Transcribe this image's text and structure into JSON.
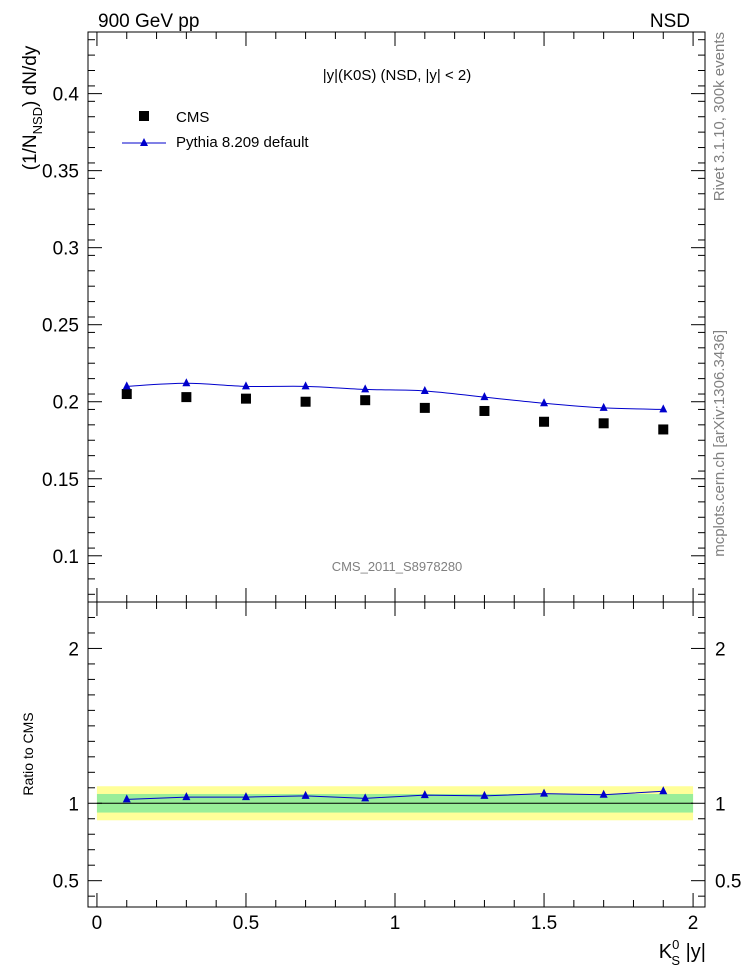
{
  "header": {
    "left": "900 GeV pp",
    "right": "NSD"
  },
  "side_text": {
    "rivet": "Rivet 3.1.10,  300k events",
    "mcplots": "mcplots.cern.ch [arXiv:1306.3436]"
  },
  "watermark": "CMS_2011_S8978280",
  "colors": {
    "mc": "#0000cc",
    "data": "#000000",
    "band_inner": "#99ee99",
    "band_outer": "#ffff99"
  },
  "chart_data": [
    {
      "type": "scatter",
      "title": "|y|(K0S) (NSD, |y| < 2)",
      "ylabel": {
        "main": "(1/N",
        "sub": "NSD",
        "tail": ") dN/dy"
      },
      "xlim": [
        -0.03,
        2.04
      ],
      "ylim": [
        0.07,
        0.44
      ],
      "yticks": [
        0.1,
        0.15,
        0.2,
        0.25,
        0.3,
        0.35,
        0.4
      ],
      "ytick_labels": [
        "0.1",
        "0.15",
        "0.2",
        "0.25",
        "0.3",
        "0.35",
        "0.4"
      ],
      "legend": {
        "position": "top-left",
        "entries": [
          "CMS",
          "Pythia 8.209 default"
        ]
      },
      "x": [
        0.1,
        0.3,
        0.5,
        0.7,
        0.9,
        1.1,
        1.3,
        1.5,
        1.7,
        1.9
      ],
      "series": [
        {
          "name": "CMS",
          "marker": "square",
          "values": [
            0.205,
            0.203,
            0.202,
            0.2,
            0.201,
            0.196,
            0.194,
            0.187,
            0.186,
            0.182
          ]
        },
        {
          "name": "Pythia 8.209 default",
          "marker": "triangle",
          "line": true,
          "values": [
            0.21,
            0.212,
            0.21,
            0.21,
            0.208,
            0.207,
            0.203,
            0.199,
            0.196,
            0.195
          ]
        }
      ]
    },
    {
      "type": "line",
      "ylabel": "Ratio to CMS",
      "xlabel": {
        "main": "K",
        "sup": "0",
        "sub": "S",
        "tail": " |y|"
      },
      "xlim": [
        -0.03,
        2.04
      ],
      "ylim": [
        0.33,
        2.3
      ],
      "xticks": [
        0,
        0.5,
        1,
        1.5,
        2
      ],
      "xtick_labels": [
        "0",
        "0.5",
        "1",
        "1.5",
        "2"
      ],
      "yticks": [
        0.5,
        1,
        2
      ],
      "ytick_labels": [
        "0.5",
        "1",
        "2"
      ],
      "band_inner": [
        0.94,
        1.06
      ],
      "band_outer": [
        0.89,
        1.11
      ],
      "x": [
        0.1,
        0.3,
        0.5,
        0.7,
        0.9,
        1.1,
        1.3,
        1.5,
        1.7,
        1.9
      ],
      "series": [
        {
          "name": "Pythia 8.209 default / CMS",
          "values": [
            1.025,
            1.04,
            1.04,
            1.048,
            1.032,
            1.053,
            1.048,
            1.062,
            1.055,
            1.078
          ]
        }
      ]
    }
  ]
}
